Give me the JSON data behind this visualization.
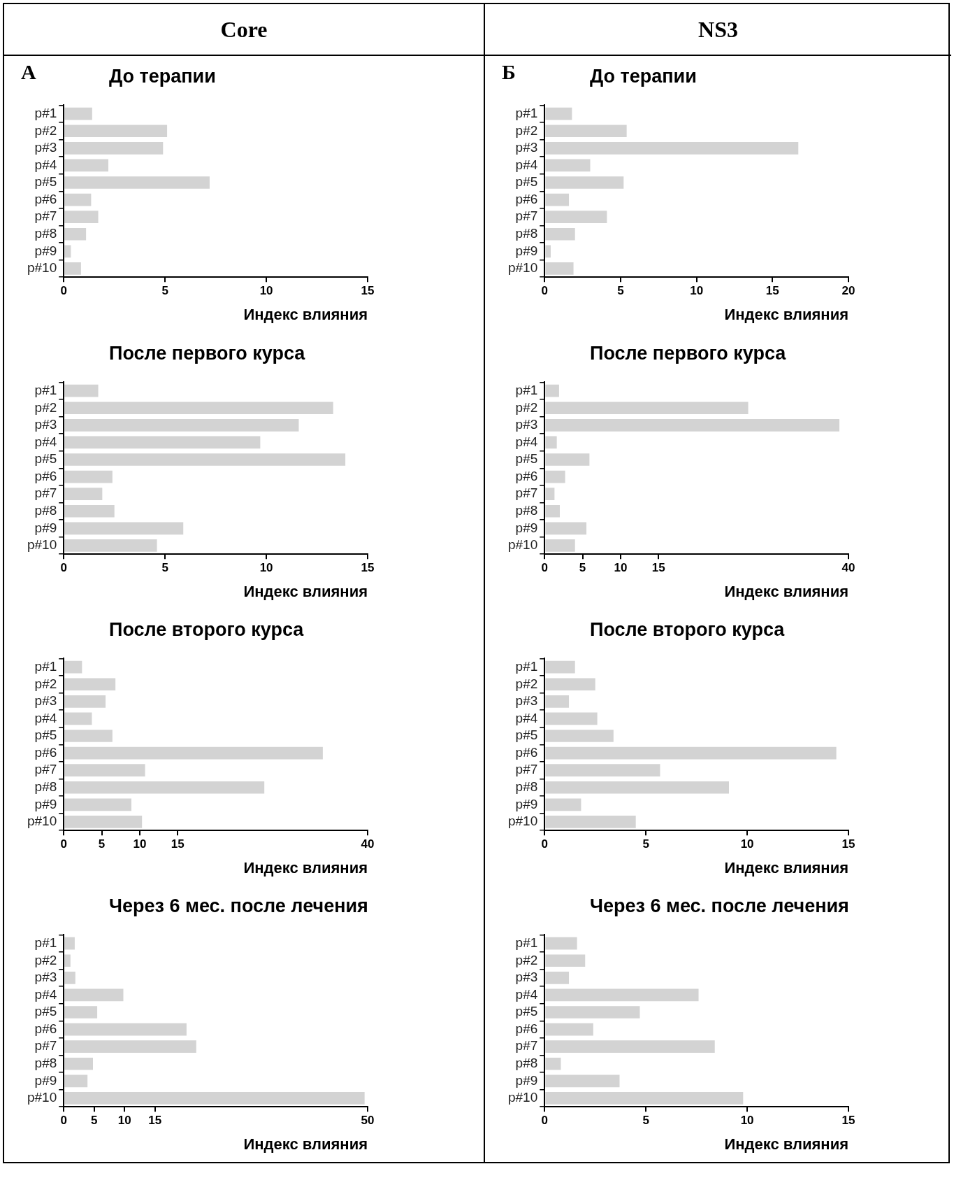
{
  "chart_data": [
    {
      "type": "bar",
      "orientation": "horizontal",
      "title": "До терапии",
      "xlabel": "Индекс влияния",
      "annotations": [
        "Core",
        "А"
      ],
      "categories": [
        "p#1",
        "p#2",
        "p#3",
        "p#4",
        "p#5",
        "p#6",
        "p#7",
        "p#8",
        "p#9",
        "p#10"
      ],
      "color": "#d3d3d3",
      "xlim": [
        0,
        15
      ],
      "xticks": [
        0,
        5,
        10,
        15
      ],
      "values": [
        1.4,
        5.1,
        4.9,
        2.2,
        7.2,
        1.35,
        1.7,
        1.1,
        0.35,
        0.85
      ]
    },
    {
      "type": "bar",
      "orientation": "horizontal",
      "title": "До терапии",
      "xlabel": "Индекс влияния",
      "annotations": [
        "NS3",
        "Б"
      ],
      "categories": [
        "p#1",
        "p#2",
        "p#3",
        "p#4",
        "p#5",
        "p#6",
        "p#7",
        "p#8",
        "p#9",
        "p#10"
      ],
      "color": "#d3d3d3",
      "xlim": [
        0,
        20
      ],
      "xticks": [
        0,
        5,
        10,
        15,
        20
      ],
      "values": [
        1.8,
        5.4,
        16.7,
        3.0,
        5.2,
        1.6,
        4.1,
        2.0,
        0.4,
        1.9
      ]
    },
    {
      "type": "bar",
      "orientation": "horizontal",
      "title": "После первого курса",
      "xlabel": "Индекс влияния",
      "categories": [
        "p#1",
        "p#2",
        "p#3",
        "p#4",
        "p#5",
        "p#6",
        "p#7",
        "p#8",
        "p#9",
        "p#10"
      ],
      "color": "#d3d3d3",
      "xlim": [
        0,
        15
      ],
      "xticks": [
        0,
        5,
        10,
        15
      ],
      "values": [
        1.7,
        13.3,
        11.6,
        9.7,
        13.9,
        2.4,
        1.9,
        2.5,
        5.9,
        4.6
      ]
    },
    {
      "type": "bar",
      "orientation": "horizontal",
      "title": "После первого курса",
      "xlabel": "Индекс влияния",
      "categories": [
        "p#1",
        "p#2",
        "p#3",
        "p#4",
        "p#5",
        "p#6",
        "p#7",
        "p#8",
        "p#9",
        "p#10"
      ],
      "color": "#d3d3d3",
      "xlim": [
        0,
        40
      ],
      "xticks": [
        0,
        5,
        10,
        15,
        40
      ],
      "values": [
        1.9,
        26.8,
        38.8,
        1.6,
        5.9,
        2.7,
        1.3,
        2.0,
        5.5,
        4.0
      ]
    },
    {
      "type": "bar",
      "orientation": "horizontal",
      "title": "После второго курса",
      "xlabel": "Индекс влияния",
      "categories": [
        "p#1",
        "p#2",
        "p#3",
        "p#4",
        "p#5",
        "p#6",
        "p#7",
        "p#8",
        "p#9",
        "p#10"
      ],
      "color": "#d3d3d3",
      "xlim": [
        0,
        40
      ],
      "xticks": [
        0,
        5,
        10,
        15,
        40
      ],
      "values": [
        2.4,
        6.8,
        5.5,
        3.7,
        6.4,
        34.1,
        10.7,
        26.4,
        8.9,
        10.3
      ]
    },
    {
      "type": "bar",
      "orientation": "horizontal",
      "title": "После второго курса",
      "xlabel": "Индекс влияния",
      "categories": [
        "p#1",
        "p#2",
        "p#3",
        "p#4",
        "p#5",
        "p#6",
        "p#7",
        "p#8",
        "p#9",
        "p#10"
      ],
      "color": "#d3d3d3",
      "xlim": [
        0,
        15
      ],
      "xticks": [
        0,
        5,
        10,
        15
      ],
      "values": [
        1.5,
        2.5,
        1.2,
        2.6,
        3.4,
        14.4,
        5.7,
        9.1,
        1.8,
        4.5
      ]
    },
    {
      "type": "bar",
      "orientation": "horizontal",
      "title": "Через 6 мес. после лечения",
      "xlabel": "Индекс влияния",
      "categories": [
        "p#1",
        "p#2",
        "p#3",
        "p#4",
        "p#5",
        "p#6",
        "p#7",
        "p#8",
        "p#9",
        "p#10"
      ],
      "color": "#d3d3d3",
      "xlim": [
        0,
        50
      ],
      "xticks": [
        0,
        5,
        10,
        15,
        50
      ],
      "values": [
        1.8,
        1.1,
        1.9,
        9.8,
        5.5,
        20.2,
        21.8,
        4.8,
        3.9,
        49.5
      ]
    },
    {
      "type": "bar",
      "orientation": "horizontal",
      "title": "Через 6 мес. после лечения",
      "xlabel": "Индекс влияния",
      "categories": [
        "p#1",
        "p#2",
        "p#3",
        "p#4",
        "p#5",
        "p#6",
        "p#7",
        "p#8",
        "p#9",
        "p#10"
      ],
      "color": "#d3d3d3",
      "xlim": [
        0,
        15
      ],
      "xticks": [
        0,
        5,
        10,
        15
      ],
      "values": [
        1.6,
        2.0,
        1.2,
        7.6,
        4.7,
        2.4,
        8.4,
        0.8,
        3.7,
        9.8
      ]
    }
  ]
}
